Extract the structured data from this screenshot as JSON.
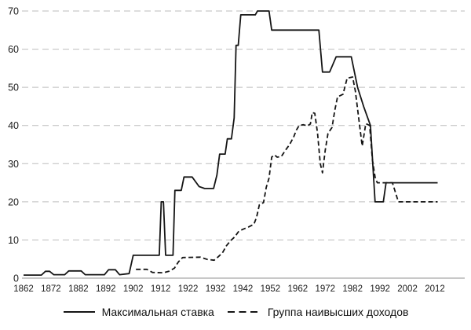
{
  "chart_data": {
    "type": "line",
    "title": "",
    "xlabel": "",
    "ylabel": "",
    "grid": true,
    "legend_position": "bottom",
    "xlim": [
      1862,
      2023
    ],
    "ylim": [
      0,
      70
    ],
    "x_ticks": [
      1862,
      1872,
      1882,
      1892,
      1902,
      1912,
      1922,
      1932,
      1942,
      1952,
      1962,
      1972,
      1982,
      1992,
      2002,
      2012
    ],
    "y_ticks": [
      0,
      10,
      20,
      30,
      40,
      50,
      60,
      70
    ],
    "series": [
      {
        "name": "Максимальная ставка",
        "style": "solid",
        "points": [
          [
            1862,
            0.8
          ],
          [
            1868.5,
            0.8
          ],
          [
            1870,
            1.8
          ],
          [
            1871.5,
            1.8
          ],
          [
            1873,
            0.9
          ],
          [
            1877,
            0.9
          ],
          [
            1878.5,
            1.9
          ],
          [
            1883,
            1.9
          ],
          [
            1884.5,
            0.9
          ],
          [
            1891.5,
            0.9
          ],
          [
            1893,
            2.2
          ],
          [
            1895.5,
            2.2
          ],
          [
            1897,
            0.9
          ],
          [
            1900.5,
            1.2
          ],
          [
            1902,
            6
          ],
          [
            1911.5,
            6
          ],
          [
            1912.2,
            20
          ],
          [
            1913,
            20
          ],
          [
            1913.8,
            6
          ],
          [
            1916.5,
            6
          ],
          [
            1917.2,
            23
          ],
          [
            1919.5,
            23
          ],
          [
            1920.5,
            26.5
          ],
          [
            1923.5,
            26.5
          ],
          [
            1926,
            24
          ],
          [
            1928,
            23.5
          ],
          [
            1931.3,
            23.5
          ],
          [
            1932.5,
            27
          ],
          [
            1933.5,
            32.5
          ],
          [
            1935.5,
            32.5
          ],
          [
            1936.3,
            36.5
          ],
          [
            1937.8,
            36.5
          ],
          [
            1938.8,
            42
          ],
          [
            1939.5,
            61
          ],
          [
            1940.3,
            61
          ],
          [
            1941.2,
            69
          ],
          [
            1946.5,
            69
          ],
          [
            1947.3,
            70
          ],
          [
            1951.5,
            70
          ],
          [
            1952.5,
            65
          ],
          [
            1969.7,
            65
          ],
          [
            1971,
            54
          ],
          [
            1973.6,
            54
          ],
          [
            1976,
            58
          ],
          [
            1981.5,
            58
          ],
          [
            1983.8,
            50
          ],
          [
            1986,
            45
          ],
          [
            1988.5,
            40
          ],
          [
            1990.2,
            20
          ],
          [
            1993.2,
            20
          ],
          [
            1994.2,
            25
          ],
          [
            2013,
            25
          ]
        ]
      },
      {
        "name": "Группа наивысших доходов",
        "style": "dashed",
        "points": [
          [
            1903,
            2.3
          ],
          [
            1907,
            2.3
          ],
          [
            1909,
            1.5
          ],
          [
            1913,
            1.4
          ],
          [
            1915,
            1.8
          ],
          [
            1917,
            2.6
          ],
          [
            1918.5,
            4.3
          ],
          [
            1920,
            5.4
          ],
          [
            1926.5,
            5.5
          ],
          [
            1929,
            4.9
          ],
          [
            1931.5,
            4.7
          ],
          [
            1933,
            5.6
          ],
          [
            1934.5,
            6.6
          ],
          [
            1936,
            8.5
          ],
          [
            1937.5,
            9.8
          ],
          [
            1939,
            10.8
          ],
          [
            1940.5,
            12.3
          ],
          [
            1942,
            12.8
          ],
          [
            1944,
            13.4
          ],
          [
            1946,
            14.1
          ],
          [
            1947,
            16
          ],
          [
            1948,
            19.2
          ],
          [
            1949.5,
            19.8
          ],
          [
            1950.5,
            23.8
          ],
          [
            1951.5,
            26.2
          ],
          [
            1952.5,
            31.7
          ],
          [
            1953.5,
            32.3
          ],
          [
            1954.5,
            31.7
          ],
          [
            1956,
            31.9
          ],
          [
            1957.5,
            33.5
          ],
          [
            1959,
            35
          ],
          [
            1960.5,
            37
          ],
          [
            1961.5,
            38.8
          ],
          [
            1962.5,
            40
          ],
          [
            1964,
            40.2
          ],
          [
            1965.5,
            39.9
          ],
          [
            1966.6,
            40.4
          ],
          [
            1967.3,
            43.4
          ],
          [
            1968.2,
            43.2
          ],
          [
            1969.2,
            38
          ],
          [
            1970.2,
            30
          ],
          [
            1971,
            27.6
          ],
          [
            1972,
            33.5
          ],
          [
            1973,
            37.9
          ],
          [
            1974.5,
            39.5
          ],
          [
            1975.5,
            44
          ],
          [
            1976.5,
            47.5
          ],
          [
            1978.5,
            48.2
          ],
          [
            1980,
            52.4
          ],
          [
            1982,
            52.7
          ],
          [
            1983,
            49
          ],
          [
            1984.2,
            42
          ],
          [
            1985.5,
            34.6
          ],
          [
            1986.8,
            40.5
          ],
          [
            1988.2,
            40
          ],
          [
            1989.2,
            31
          ],
          [
            1990.2,
            26.5
          ],
          [
            1991,
            25
          ],
          [
            1996.5,
            25
          ],
          [
            1998.7,
            20
          ],
          [
            2013,
            20
          ]
        ]
      }
    ],
    "colors": {
      "line": "#151515",
      "grid": "#bdbdbd",
      "axis": "#a6a6a6",
      "text": "#1a1a1a"
    }
  },
  "legend": {
    "items": [
      {
        "label": "Максимальная ставка"
      },
      {
        "label": "Группа наивысших доходов"
      }
    ]
  }
}
